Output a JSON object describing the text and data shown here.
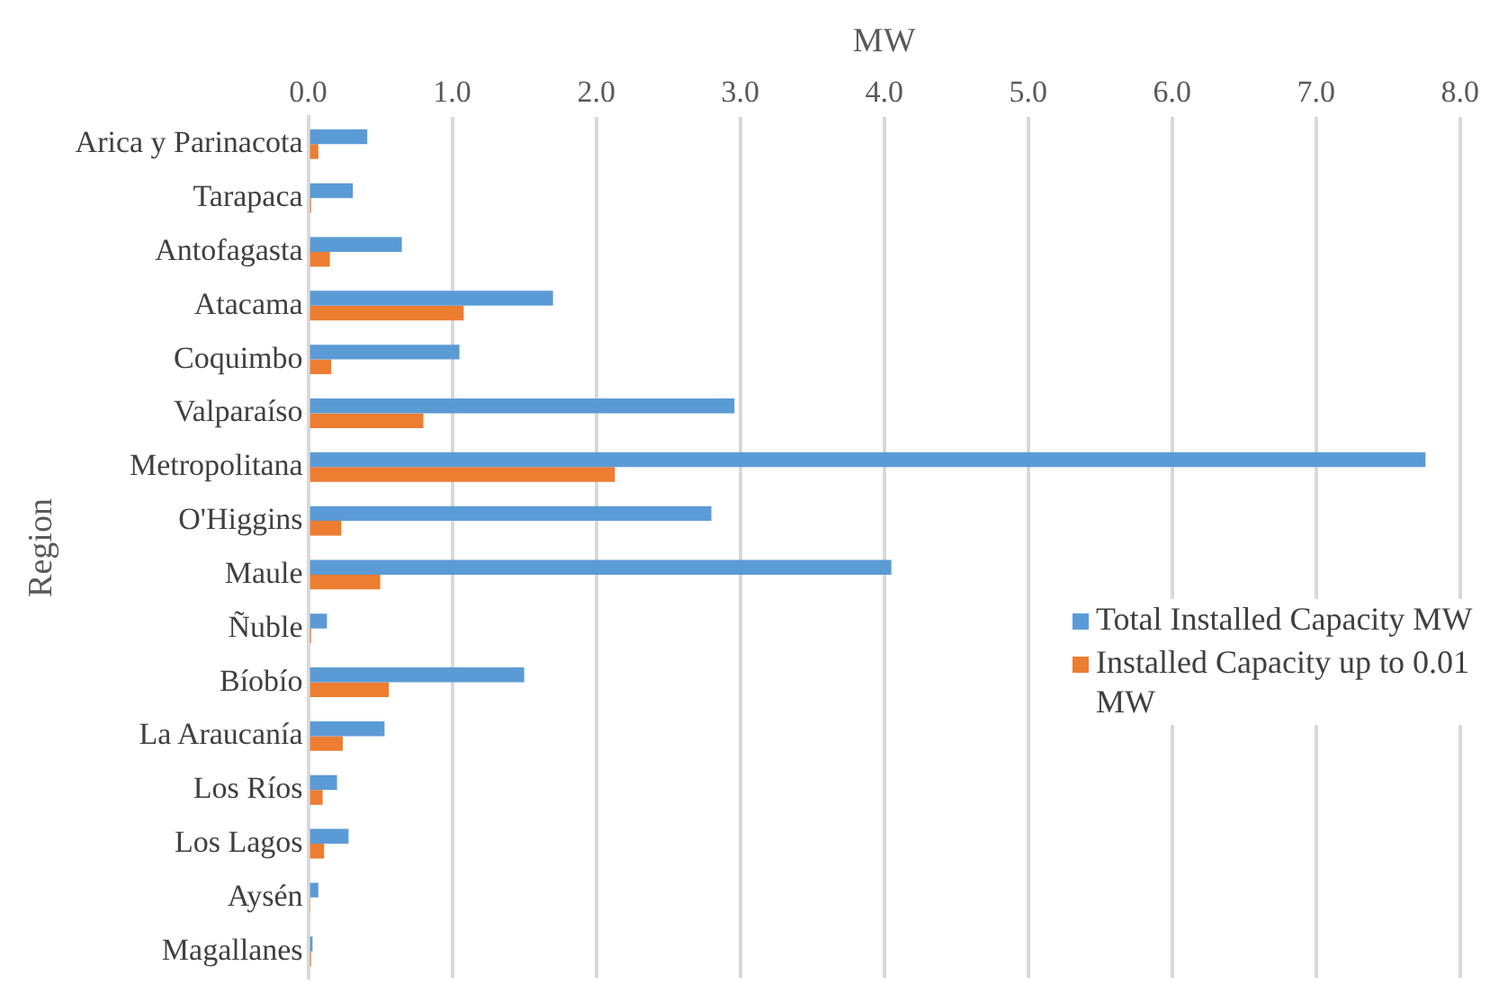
{
  "chart_data": {
    "type": "bar",
    "orientation": "horizontal",
    "xlabel": "MW",
    "ylabel": "Region",
    "categories": [
      "Arica y Parinacota",
      "Tarapaca",
      "Antofagasta",
      "Atacama",
      "Coquimbo",
      "Valparaíso",
      "Metropolitana",
      "O'Higgins",
      "Maule",
      "Ñuble",
      "Bíobío",
      "La Araucanía",
      "Los Ríos",
      "Los Lagos",
      "Aysén",
      "Magallanes"
    ],
    "series": [
      {
        "name": "Total Installed Capacity MW",
        "color": "#5b9bd5",
        "values": [
          0.41,
          0.31,
          0.65,
          1.7,
          1.05,
          2.96,
          7.76,
          2.8,
          4.05,
          0.13,
          1.5,
          0.53,
          0.2,
          0.28,
          0.07,
          0.03
        ]
      },
      {
        "name": "Installed Capacity up to 0.01 MW",
        "color": "#ed7d31",
        "values": [
          0.07,
          0.02,
          0.15,
          1.08,
          0.16,
          0.8,
          2.13,
          0.23,
          0.5,
          0.02,
          0.56,
          0.24,
          0.1,
          0.11,
          0.01,
          0.02
        ]
      }
    ],
    "xlim": [
      0,
      8
    ],
    "xticks": [
      {
        "value": 0,
        "label": "0.0"
      },
      {
        "value": 1,
        "label": "1.0"
      },
      {
        "value": 2,
        "label": "2.0"
      },
      {
        "value": 3,
        "label": "3.0"
      },
      {
        "value": 4,
        "label": "4.0"
      },
      {
        "value": 5,
        "label": "5.0"
      },
      {
        "value": 6,
        "label": "6.0"
      },
      {
        "value": 7,
        "label": "7.0"
      },
      {
        "value": 8,
        "label": "8.0"
      }
    ],
    "grid": "x",
    "legend": "right"
  }
}
